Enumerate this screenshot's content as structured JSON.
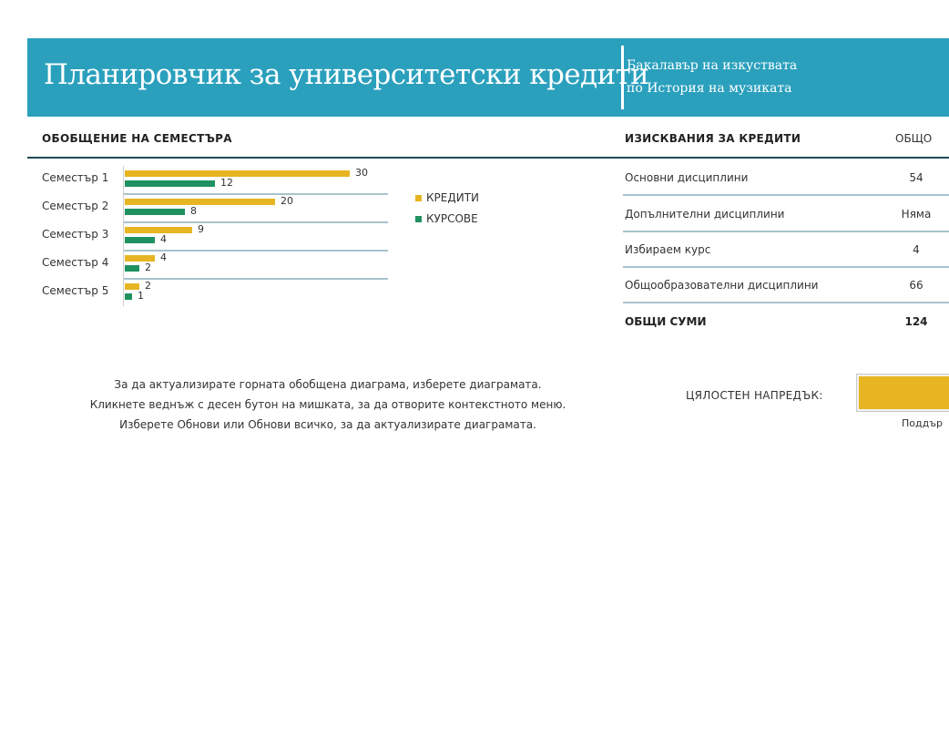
{
  "header": {
    "title": "Планировчик за университетски кредити",
    "degree_line1": "Бакалавър на изкуствата",
    "degree_line2": "по История на музиката"
  },
  "semester_summary": {
    "title": "ОБОБЩЕНИЕ НА СЕМЕСТЪРА",
    "legend": {
      "credits": "КРЕДИТИ",
      "courses": "КУРСОВЕ"
    }
  },
  "requirements": {
    "title": "ИЗИСКВАНИЯ ЗА КРЕДИТИ",
    "total_column": "ОБЩО",
    "rows": [
      {
        "label": "Основни дисциплини",
        "value": "54"
      },
      {
        "label": "Допълнителни дисциплини",
        "value": "Няма"
      },
      {
        "label": "Избираем курс",
        "value": "4"
      },
      {
        "label": "Общообразователни дисциплини",
        "value": "66"
      }
    ],
    "totals_label": "ОБЩИ СУМИ",
    "totals_value": "124"
  },
  "instructions": [
    "За да актуализирате горната обобщена диаграма, изберете диаграмата.",
    "Кликнете веднъж с десен бутон на мишката, за да отворите контекстното меню.",
    "Изберете Обнови или Обнови всичко, за да актуализирате диаграмата."
  ],
  "progress": {
    "label": "ЦЯЛОСТЕН НАПРЕДЪК:",
    "value_fraction": 1.0,
    "sublabel": "Поддър"
  },
  "colors": {
    "banner": "#2aa0bd",
    "credits": "#e8b522",
    "courses": "#1f9160",
    "rule": "#a7c3cc",
    "header_rule": "#1f4a55"
  },
  "chart_data": {
    "type": "bar",
    "orientation": "horizontal",
    "categories": [
      "Семестър 1",
      "Семестър 2",
      "Семестър 3",
      "Семестър 4",
      "Семестър 5"
    ],
    "series": [
      {
        "name": "КРЕДИТИ",
        "values": [
          30,
          20,
          9,
          4,
          2
        ]
      },
      {
        "name": "КУРСОВЕ",
        "values": [
          12,
          8,
          4,
          2,
          1
        ]
      }
    ],
    "title": "ОБОБЩЕНИЕ НА СЕМЕСТЪРА",
    "xlim": [
      0,
      30
    ],
    "legend": "right"
  }
}
